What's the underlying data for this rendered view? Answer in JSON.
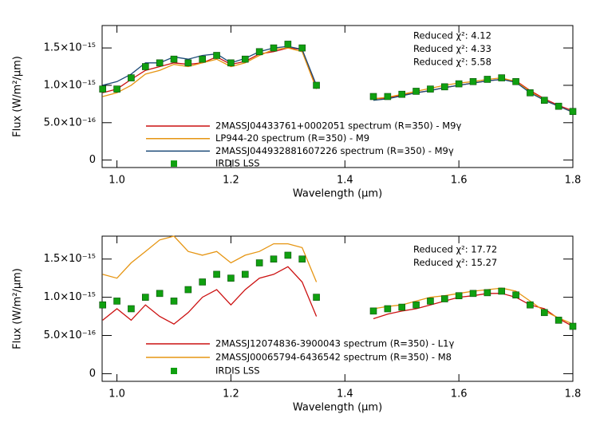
{
  "chart_data": [
    {
      "type": "line",
      "xlabel": "Wavelength (µm)",
      "ylabel": "Flux (W/m²/µm)",
      "xlim": [
        0.974,
        1.8
      ],
      "ylim": [
        -1e-16,
        1.8e-15
      ],
      "xticks": [
        {
          "value": 1,
          "label": "1.0"
        },
        1.2,
        1.4,
        1.6,
        1.8
      ],
      "yticks": [
        0,
        {
          "value": 5e-16,
          "label": "5.0×10⁻¹⁶"
        },
        {
          "value": 1e-15,
          "label": "1.0×10⁻¹⁵"
        },
        {
          "value": 1.5e-15,
          "label": "1.5×10⁻¹⁵"
        }
      ],
      "x": [
        0.975,
        1.0,
        1.025,
        1.05,
        1.075,
        1.1,
        1.125,
        1.15,
        1.175,
        1.2,
        1.225,
        1.25,
        1.275,
        1.3,
        1.325,
        1.35,
        1.4,
        1.45,
        1.475,
        1.5,
        1.525,
        1.55,
        1.575,
        1.6,
        1.625,
        1.65,
        1.675,
        1.7,
        1.725,
        1.75,
        1.775,
        1.8
      ],
      "series": [
        {
          "name": "2MASSJ04433761+0002051 spectrum (R=350) - M9γ",
          "color": "#cc1111",
          "style": "line",
          "values": [
            9e-16,
            9.5e-16,
            1.08e-15,
            1.2e-15,
            1.25e-15,
            1.3e-15,
            1.28e-15,
            1.3e-15,
            1.38e-15,
            1.28e-15,
            1.32e-15,
            1.42e-15,
            1.45e-15,
            1.5e-15,
            1.48e-15,
            9.8e-16,
            null,
            8.2e-16,
            8.3e-16,
            8.7e-16,
            9e-16,
            9.3e-16,
            9.7e-16,
            1e-15,
            1.03e-15,
            1.06e-15,
            1.08e-15,
            1.06e-15,
            9.3e-16,
            8.2e-16,
            7.3e-16,
            6.6e-16
          ]
        },
        {
          "name": "LP944-20 spectrum (R=350) - M9",
          "color": "#e69512",
          "style": "line",
          "values": [
            8.5e-16,
            9e-16,
            1e-15,
            1.15e-15,
            1.2e-15,
            1.28e-15,
            1.25e-15,
            1.3e-15,
            1.35e-15,
            1.25e-15,
            1.3e-15,
            1.4e-15,
            1.48e-15,
            1.5e-15,
            1.45e-15,
            9.5e-16,
            null,
            8.2e-16,
            8.4e-16,
            8.8e-16,
            9.2e-16,
            9.6e-16,
            1e-15,
            1.03e-15,
            1.05e-15,
            1.08e-15,
            1.1e-15,
            1.05e-15,
            9.2e-16,
            8e-16,
            7.2e-16,
            6.4e-16
          ]
        },
        {
          "name": "2MASSJ044932881607226 spectrum (R=350) - M9γ",
          "color": "#1c4a78",
          "style": "line",
          "values": [
            1e-15,
            1.05e-15,
            1.15e-15,
            1.3e-15,
            1.3e-15,
            1.38e-15,
            1.35e-15,
            1.4e-15,
            1.42e-15,
            1.3e-15,
            1.36e-15,
            1.45e-15,
            1.5e-15,
            1.52e-15,
            1.48e-15,
            1e-15,
            null,
            8e-16,
            8.2e-16,
            8.6e-16,
            9e-16,
            9.3e-16,
            9.7e-16,
            1e-15,
            1.03e-15,
            1.06e-15,
            1.08e-15,
            1.04e-15,
            9e-16,
            8e-16,
            7.2e-16,
            6.4e-16
          ]
        },
        {
          "name": "IRDIS LSS",
          "color": "#10a010",
          "style": "markers",
          "values": [
            9.5e-16,
            9.5e-16,
            1.1e-15,
            1.25e-15,
            1.3e-15,
            1.35e-15,
            1.3e-15,
            1.35e-15,
            1.4e-15,
            1.3e-15,
            1.35e-15,
            1.45e-15,
            1.5e-15,
            1.55e-15,
            1.5e-15,
            1e-15,
            null,
            8.5e-16,
            8.5e-16,
            8.8e-16,
            9.2e-16,
            9.5e-16,
            9.8e-16,
            1.02e-15,
            1.05e-15,
            1.08e-15,
            1.1e-15,
            1.05e-15,
            9e-16,
            8e-16,
            7.2e-16,
            6.5e-16
          ]
        }
      ],
      "annotations": [
        {
          "text": "Reduced χ²: 4.12",
          "color": "#cc1111"
        },
        {
          "text": "Reduced χ²: 4.33",
          "color": "#e69512"
        },
        {
          "text": "Reduced χ²: 5.58",
          "color": "#1c4a78"
        }
      ]
    },
    {
      "type": "line",
      "xlabel": "Wavelength (µm)",
      "ylabel": "Flux (W/m²/µm)",
      "xlim": [
        0.974,
        1.8
      ],
      "ylim": [
        -1e-16,
        1.8e-15
      ],
      "xticks": [
        {
          "value": 1,
          "label": "1.0"
        },
        1.2,
        1.4,
        1.6,
        1.8
      ],
      "yticks": [
        0,
        {
          "value": 5e-16,
          "label": "5.0×10⁻¹⁶"
        },
        {
          "value": 1e-15,
          "label": "1.0×10⁻¹⁵"
        },
        {
          "value": 1.5e-15,
          "label": "1.5×10⁻¹⁵"
        }
      ],
      "x": [
        0.975,
        1.0,
        1.025,
        1.05,
        1.075,
        1.1,
        1.125,
        1.15,
        1.175,
        1.2,
        1.225,
        1.25,
        1.275,
        1.3,
        1.325,
        1.35,
        1.4,
        1.45,
        1.475,
        1.5,
        1.525,
        1.55,
        1.575,
        1.6,
        1.625,
        1.65,
        1.675,
        1.7,
        1.725,
        1.75,
        1.775,
        1.8
      ],
      "series": [
        {
          "name": "2MASSJ12074836-3900043 spectrum (R=350) - L1γ",
          "color": "#cc1111",
          "style": "line",
          "values": [
            7e-16,
            8.5e-16,
            7e-16,
            9e-16,
            7.5e-16,
            6.5e-16,
            8e-16,
            1e-15,
            1.1e-15,
            9e-16,
            1.1e-15,
            1.25e-15,
            1.3e-15,
            1.4e-15,
            1.2e-15,
            7.5e-16,
            null,
            7.2e-16,
            7.8e-16,
            8.2e-16,
            8.5e-16,
            9e-16,
            9.5e-16,
            1e-15,
            1.02e-15,
            1.05e-15,
            1.05e-15,
            1e-15,
            9e-16,
            8.5e-16,
            7.2e-16,
            6.2e-16
          ]
        },
        {
          "name": "2MASSJ00065794-6436542 spectrum (R=350) - M8",
          "color": "#e69512",
          "style": "line",
          "values": [
            1.3e-15,
            1.25e-15,
            1.45e-15,
            1.6e-15,
            1.75e-15,
            1.8e-15,
            1.6e-15,
            1.55e-15,
            1.6e-15,
            1.45e-15,
            1.55e-15,
            1.6e-15,
            1.7e-15,
            1.7e-15,
            1.65e-15,
            1.2e-15,
            null,
            8.5e-16,
            8.8e-16,
            9e-16,
            9.5e-16,
            1e-15,
            1.02e-15,
            1.05e-15,
            1.08e-15,
            1.1e-15,
            1.12e-15,
            1.08e-15,
            9.5e-16,
            8.2e-16,
            7.3e-16,
            6.5e-16
          ]
        },
        {
          "name": "IRDIS LSS",
          "color": "#10a010",
          "style": "markers",
          "values": [
            9e-16,
            9.5e-16,
            8.5e-16,
            1e-15,
            1.05e-15,
            9.5e-16,
            1.1e-15,
            1.2e-15,
            1.3e-15,
            1.25e-15,
            1.3e-15,
            1.45e-15,
            1.5e-15,
            1.55e-15,
            1.5e-15,
            1e-15,
            null,
            8.2e-16,
            8.5e-16,
            8.7e-16,
            9e-16,
            9.5e-16,
            9.8e-16,
            1.02e-15,
            1.05e-15,
            1.06e-15,
            1.08e-15,
            1.03e-15,
            9e-16,
            8e-16,
            7e-16,
            6.2e-16
          ]
        }
      ],
      "annotations": [
        {
          "text": "Reduced χ²: 17.72",
          "color": "#cc1111"
        },
        {
          "text": "Reduced χ²: 15.27",
          "color": "#e69512"
        }
      ]
    }
  ]
}
